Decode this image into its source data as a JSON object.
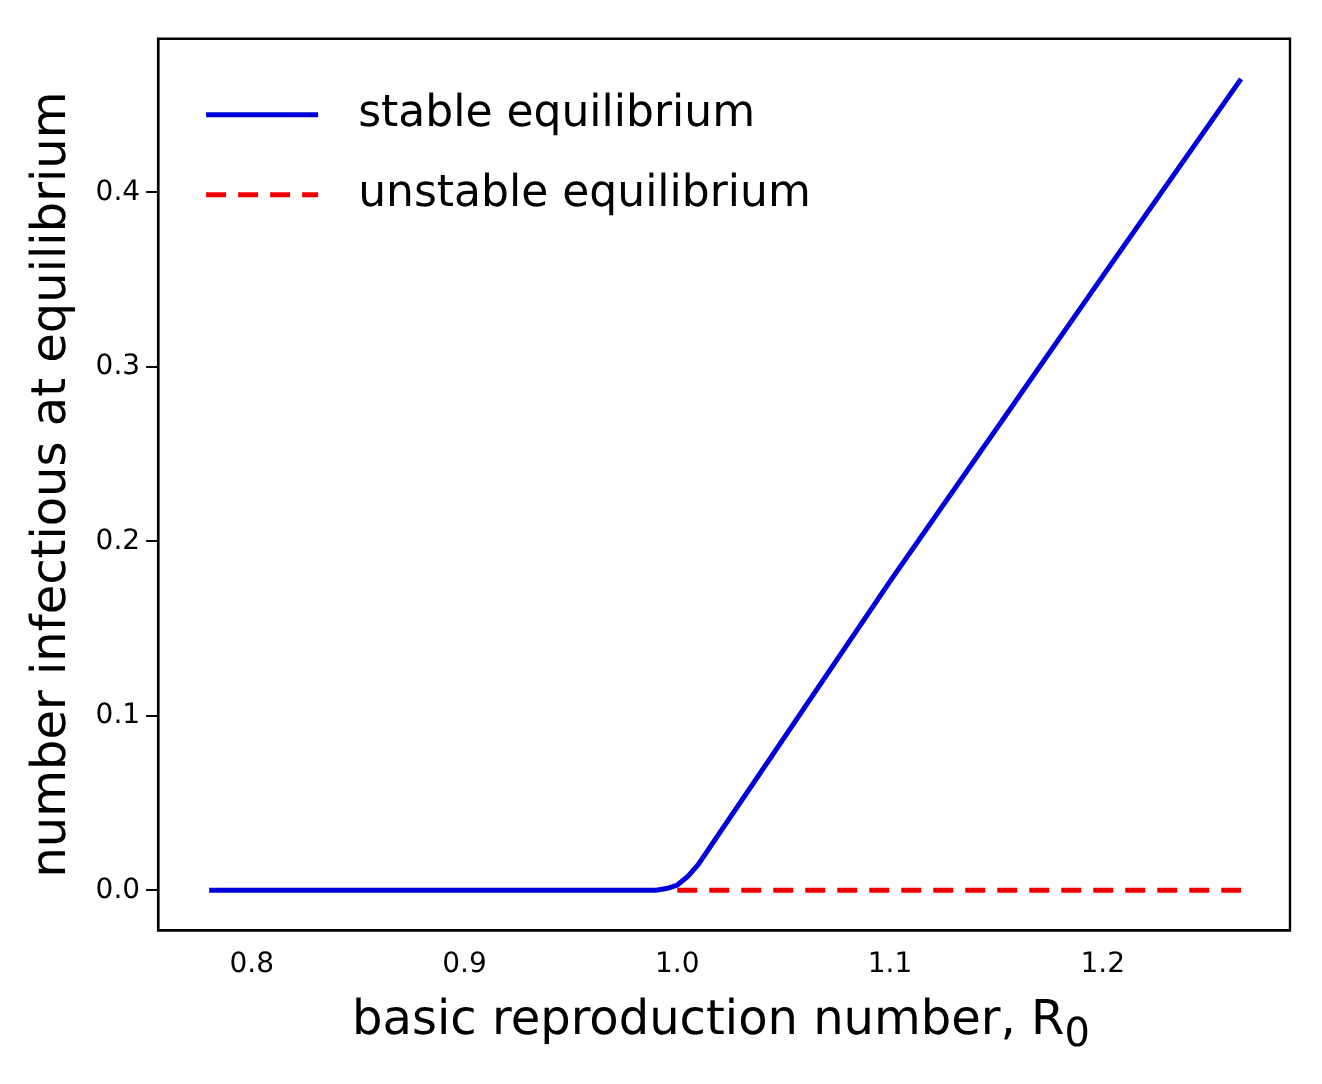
{
  "chart_data": {
    "type": "line",
    "xlabel": "basic reproduction number, R$_{0}$",
    "ylabel": "number infectious at equilibrium",
    "xlim": [
      0.756,
      1.288
    ],
    "xticks": [
      {
        "value": 0.8,
        "label": "0.8"
      },
      {
        "value": 0.9,
        "label": "0.9"
      },
      {
        "value": 1.0,
        "label": "1.0"
      },
      {
        "value": 1.1,
        "label": "1.1"
      },
      {
        "value": 1.2,
        "label": "1.2"
      }
    ],
    "ylim": [
      -0.023,
      0.488
    ],
    "yticks": [
      {
        "value": 0,
        "label": "0.0"
      },
      {
        "value": 0.1,
        "label": "0.1"
      },
      {
        "value": 0.2,
        "label": "0.2"
      },
      {
        "value": 0.3,
        "label": "0.3"
      },
      {
        "value": 0.4,
        "label": "0.4"
      }
    ],
    "legend": "top left",
    "grid": false,
    "series": [
      {
        "name": "stable equilibrium",
        "color": "#0000dd",
        "line_style": "solid",
        "x": [
          0.78,
          0.99,
          0.995,
          1.0,
          1.005,
          1.01,
          1.02,
          1.1,
          1.2,
          1.265
        ],
        "values": [
          0,
          0,
          0.001,
          0.003,
          0.008,
          0.015,
          0.033,
          0.177,
          0.352,
          0.465
        ]
      },
      {
        "name": "unstable equilibrium",
        "color": "#ee0000",
        "line_style": "dashed",
        "x": [
          1.0,
          1.265
        ],
        "values": [
          0,
          0
        ]
      }
    ]
  }
}
